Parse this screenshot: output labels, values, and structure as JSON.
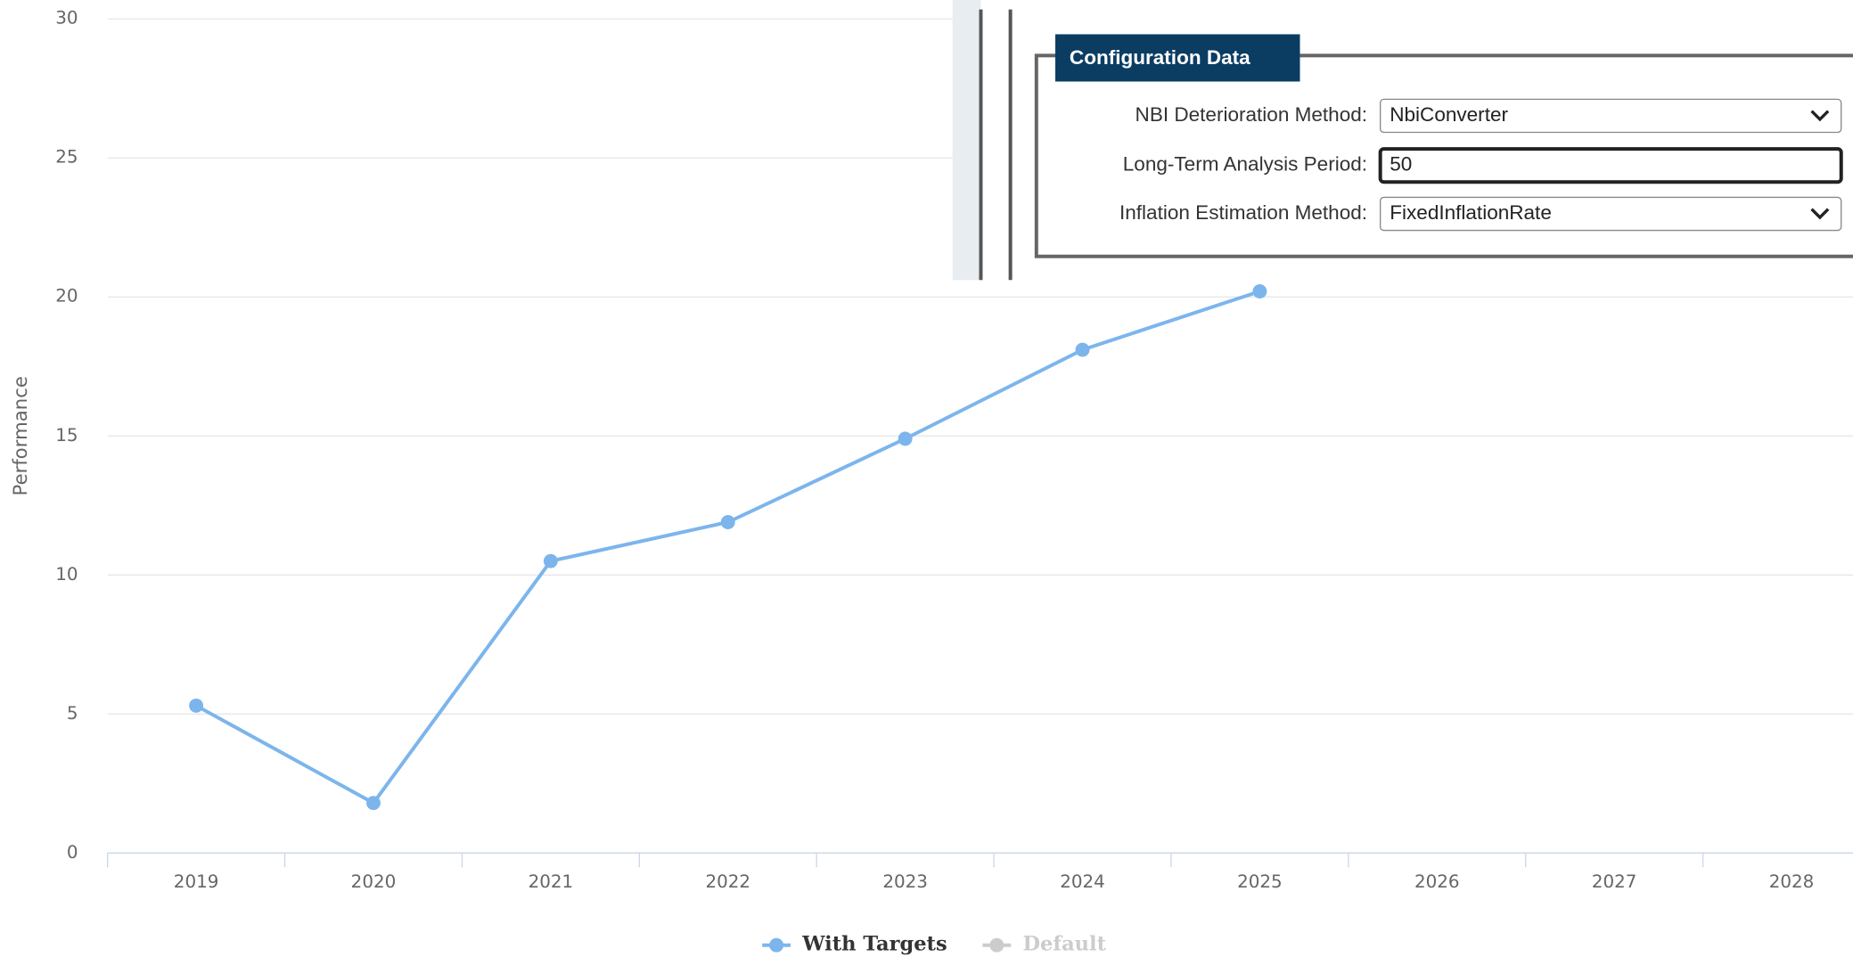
{
  "chart_data": {
    "type": "line",
    "y_label": "Performance",
    "categories": [
      "2019",
      "2020",
      "2021",
      "2022",
      "2023",
      "2024",
      "2025",
      "2026",
      "2027",
      "2028"
    ],
    "series": [
      {
        "name": "With Targets",
        "color": "#7cb5ec",
        "values": [
          5.3,
          1.8,
          10.5,
          11.9,
          14.9,
          18.1,
          20.2,
          null,
          null,
          null
        ]
      },
      {
        "name": "Default",
        "color": "#cccccc",
        "values": [
          null,
          null,
          null,
          null,
          null,
          null,
          null,
          null,
          null,
          null
        ]
      }
    ],
    "ylim": [
      0,
      30
    ],
    "yticks": [
      0,
      5,
      10,
      15,
      20,
      25,
      30
    ],
    "grid": true
  },
  "config": {
    "title": "Configuration Data",
    "fields": [
      {
        "label": "NBI Deterioration Method:",
        "value": "NbiConverter"
      },
      {
        "label": "Long-Term Analysis Period:",
        "value": "50"
      },
      {
        "label": "Inflation Estimation Method:",
        "value": "FixedInflationRate"
      }
    ]
  }
}
